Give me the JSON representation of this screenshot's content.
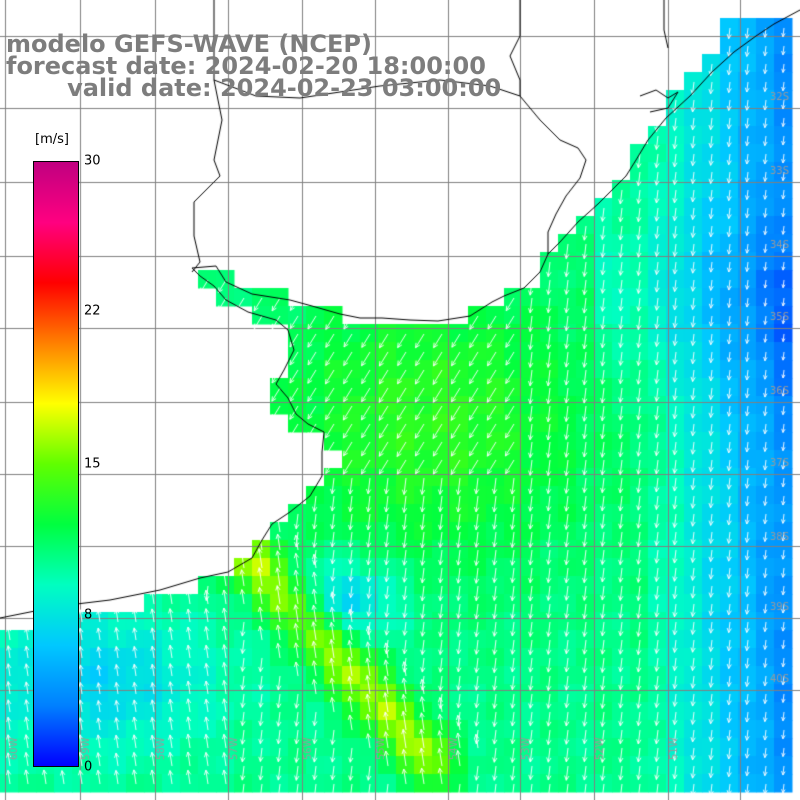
{
  "map": {
    "title_lines": [
      "modelo GEFS-WAVE (NCEP)",
      "forecast date: 2024-02-20 18:00:00",
      "   valid date: 2024-02-23 03:00:00"
    ],
    "variable_unit": "[m/s]",
    "colorbar": {
      "min": 0,
      "max": 30,
      "tick_labels": [
        "30",
        "22",
        "15",
        "8",
        "0"
      ],
      "tick_values": [
        30,
        22,
        15,
        8,
        0
      ],
      "colors": [
        "#0000ff",
        "#0080ff",
        "#00c8ff",
        "#00ffc0",
        "#00ff40",
        "#60ff00",
        "#ffff00",
        "#ff8000",
        "#ff0000",
        "#ff0080",
        "#c00080"
      ]
    },
    "lat_labels": [
      "32S",
      "33S",
      "34S",
      "35S",
      "36S",
      "37S",
      "38S",
      "39S",
      "40S"
    ],
    "lon_labels": [
      "60W",
      "59W",
      "58W",
      "57W",
      "56W",
      "55W",
      "54W",
      "53W",
      "52W",
      "51W"
    ],
    "colors": {
      "title": "#7d7d7d",
      "coastline": "#000000",
      "grid": "#808080",
      "vectors": "#ffffff"
    },
    "icons": [
      "wind-vector-arrow-icon"
    ]
  }
}
